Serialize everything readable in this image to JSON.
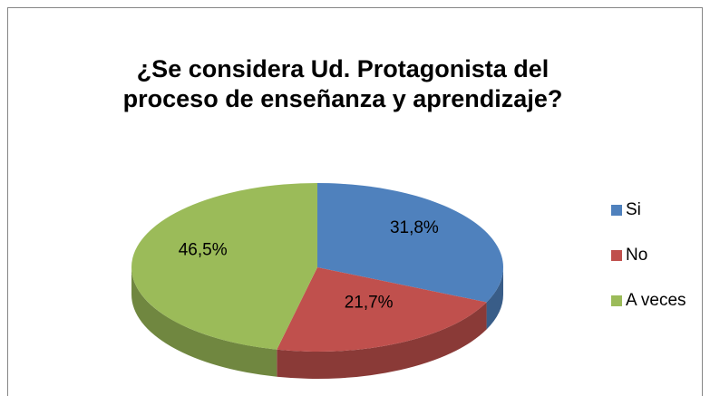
{
  "chart_data": {
    "type": "pie3d",
    "title": [
      "¿Se considera Ud. Protagonista del",
      "proceso de enseñanza y aprendizaje?"
    ],
    "categories": [
      "Si",
      "No",
      "A veces"
    ],
    "values": [
      31.8,
      21.7,
      46.5
    ],
    "value_labels": [
      "31,8%",
      "21,7%",
      "46,5%"
    ],
    "colors": [
      "#4f81bd",
      "#c0504d",
      "#9bbb59"
    ],
    "legend": "right"
  }
}
